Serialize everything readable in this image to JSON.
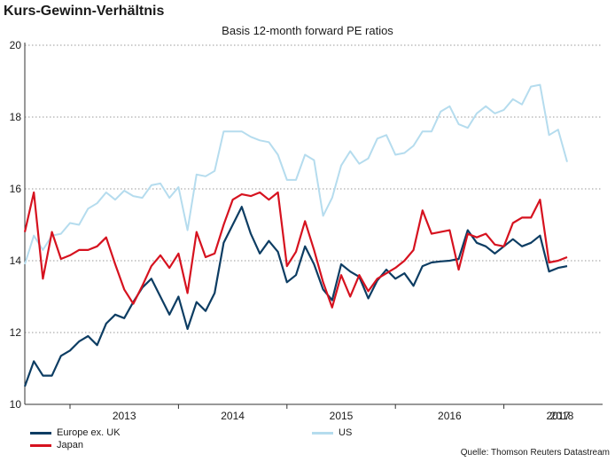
{
  "title": "Kurs-Gewinn-Verhältnis",
  "subtitle": "Basis 12-month forward PE ratios",
  "source": "Quelle: Thomson Reuters Datastream",
  "chart_data": {
    "type": "line",
    "title": "Kurs-Gewinn-Verhältnis",
    "subtitle": "Basis 12-month forward PE ratios",
    "xlabel": "",
    "ylabel": "",
    "ylim": [
      10,
      20
    ],
    "yticks": [
      "20",
      "18",
      "16",
      "14",
      "12",
      "10"
    ],
    "xticks": [
      "2013",
      "2014",
      "2015",
      "2016",
      "2017",
      "2018"
    ],
    "grid": "horizontal dotted",
    "legend_position": "bottom",
    "x_start": "2012-08",
    "x_step": "month",
    "series": [
      {
        "name": "Europe ex. UK",
        "color": "#0d3d63",
        "values": [
          10.5,
          11.2,
          10.8,
          10.8,
          11.35,
          11.5,
          11.75,
          11.9,
          11.65,
          12.25,
          12.5,
          12.4,
          12.85,
          13.25,
          13.5,
          13.0,
          12.5,
          13.0,
          12.1,
          12.85,
          12.6,
          13.1,
          14.5,
          15.0,
          15.5,
          14.75,
          14.2,
          14.55,
          14.25,
          13.4,
          13.6,
          14.4,
          13.9,
          13.2,
          12.9,
          13.9,
          13.7,
          13.55,
          12.95,
          13.45,
          13.75,
          13.5,
          13.65,
          13.3,
          13.85,
          13.95,
          13.98,
          14.0,
          14.05,
          14.85,
          14.5,
          14.4,
          14.2,
          14.4,
          14.6,
          14.4,
          14.5,
          14.7,
          13.7,
          13.8,
          13.85
        ]
      },
      {
        "name": "Japan",
        "color": "#d6121f",
        "values": [
          14.8,
          15.9,
          13.5,
          14.8,
          14.05,
          14.15,
          14.3,
          14.3,
          14.4,
          14.65,
          13.9,
          13.2,
          12.8,
          13.3,
          13.85,
          14.15,
          13.8,
          14.2,
          13.1,
          14.8,
          14.1,
          14.2,
          15.0,
          15.7,
          15.85,
          15.8,
          15.9,
          15.7,
          15.9,
          13.85,
          14.25,
          15.1,
          14.3,
          13.4,
          12.7,
          13.6,
          13.0,
          13.6,
          13.15,
          13.5,
          13.65,
          13.8,
          14.0,
          14.3,
          15.4,
          14.75,
          14.8,
          14.85,
          13.75,
          14.75,
          14.65,
          14.75,
          14.45,
          14.4,
          15.05,
          15.2,
          15.2,
          15.7,
          13.95,
          14.0,
          14.1
        ]
      },
      {
        "name": "US",
        "color": "#b5dcee",
        "values": [
          13.9,
          14.7,
          14.3,
          14.7,
          14.75,
          15.05,
          15.0,
          15.45,
          15.6,
          15.9,
          15.7,
          15.95,
          15.8,
          15.75,
          16.1,
          16.15,
          15.75,
          16.05,
          14.85,
          16.4,
          16.35,
          16.5,
          17.6,
          17.6,
          17.6,
          17.45,
          17.35,
          17.3,
          16.95,
          16.25,
          16.25,
          16.95,
          16.8,
          15.25,
          15.75,
          16.65,
          17.05,
          16.7,
          16.85,
          17.4,
          17.5,
          16.95,
          17.0,
          17.2,
          17.6,
          17.6,
          18.15,
          18.3,
          17.8,
          17.7,
          18.1,
          18.3,
          18.1,
          18.2,
          18.5,
          18.35,
          18.85,
          18.9,
          17.5,
          17.65,
          16.75
        ]
      }
    ]
  }
}
